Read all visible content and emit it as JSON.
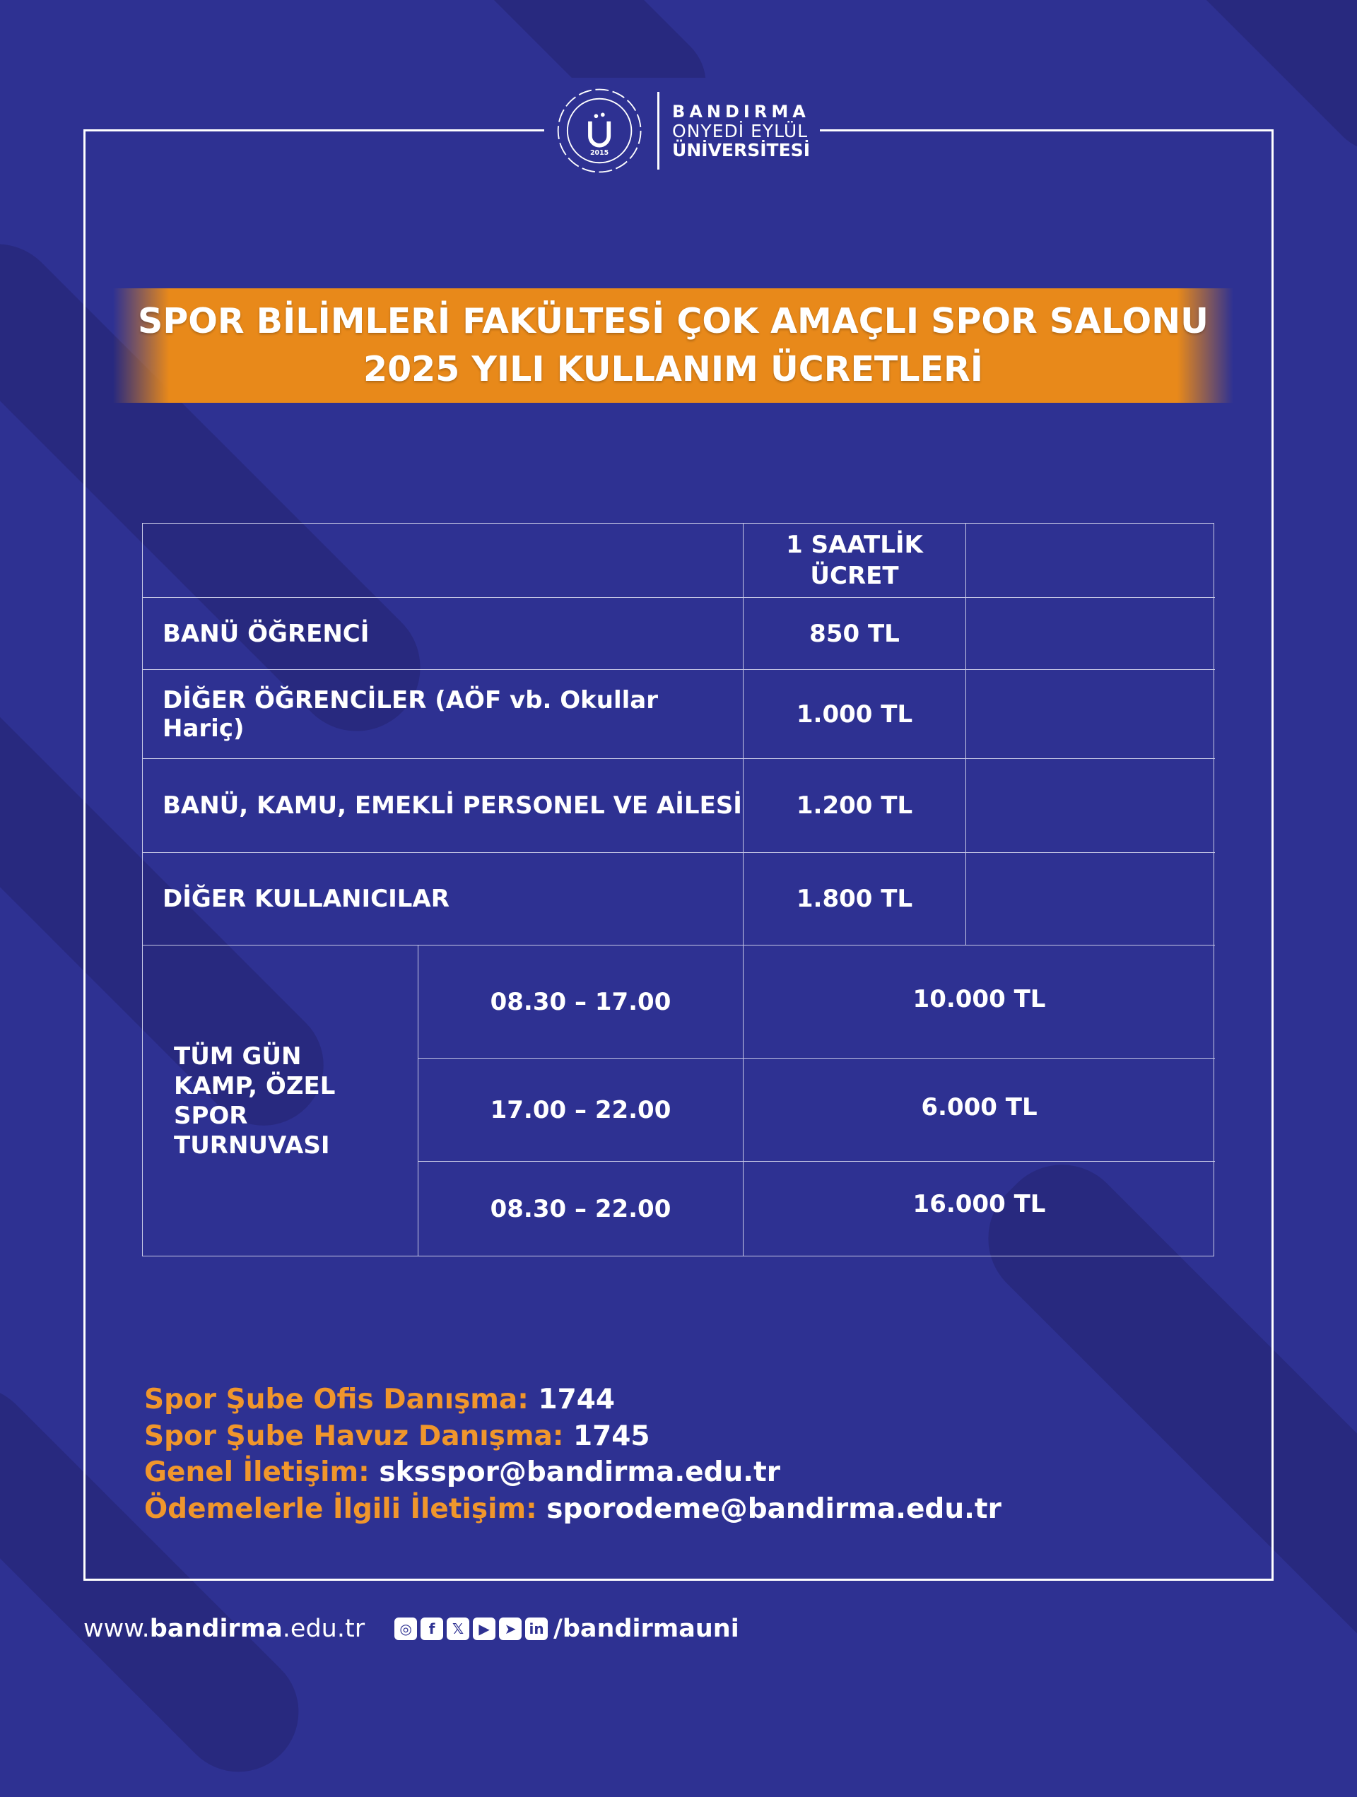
{
  "colors": {
    "background": "#2e3192",
    "accent": "#e8891a",
    "contact_label": "#f0962c"
  },
  "logo": {
    "seal_text": "BANDIRMA ONYEDİ EYLÜL ÜNİVERSİTESİ 2015",
    "line1": "BANDIRMA",
    "line2": "ONYEDİ EYLÜL",
    "line3": "ÜNİVERSİTESİ"
  },
  "title": {
    "line1": "SPOR BİLİMLERİ FAKÜLTESİ ÇOK AMAÇLI SPOR SALONU",
    "line2": "2025 YILI KULLANIM ÜCRETLERİ"
  },
  "table": {
    "header": "1 SAATLİK ÜCRET",
    "rows": [
      {
        "label": "BANÜ ÖĞRENCİ",
        "price": "850 TL"
      },
      {
        "label": "DİĞER ÖĞRENCİLER (AÖF vb. Okullar Hariç)",
        "price": "1.000 TL"
      },
      {
        "label": "BANÜ, KAMU, EMEKLİ PERSONEL VE AİLESİ",
        "price": "1.200 TL"
      },
      {
        "label": "DİĞER KULLANICILAR",
        "price": "1.800 TL"
      }
    ],
    "camp": {
      "label": "TÜM GÜN KAMP, ÖZEL SPOR TURNUVASI",
      "slots": [
        {
          "time": "08.30 – 17.00",
          "price": "10.000 TL"
        },
        {
          "time": "17.00 – 22.00",
          "price": "6.000 TL"
        },
        {
          "time": "08.30 – 22.00",
          "price": "16.000 TL"
        }
      ]
    }
  },
  "contacts": [
    {
      "label": "Spor Şube Ofis Danışma:",
      "value": "1744"
    },
    {
      "label": "Spor Şube Havuz Danışma:",
      "value": "1745"
    },
    {
      "label": "Genel İletişim:",
      "value": "sksspor@bandirma.edu.tr"
    },
    {
      "label": "Ödemelerle İlgili İletişim:",
      "value": "sporodeme@bandirma.edu.tr"
    }
  ],
  "footer": {
    "web_prefix": "www.",
    "web_bold": "bandirma",
    "web_suffix": ".edu.tr",
    "social_handle": "/bandirmauni",
    "social_icons": [
      "instagram-icon",
      "facebook-icon",
      "x-icon",
      "youtube-icon",
      "telegram-icon",
      "linkedin-icon"
    ]
  }
}
